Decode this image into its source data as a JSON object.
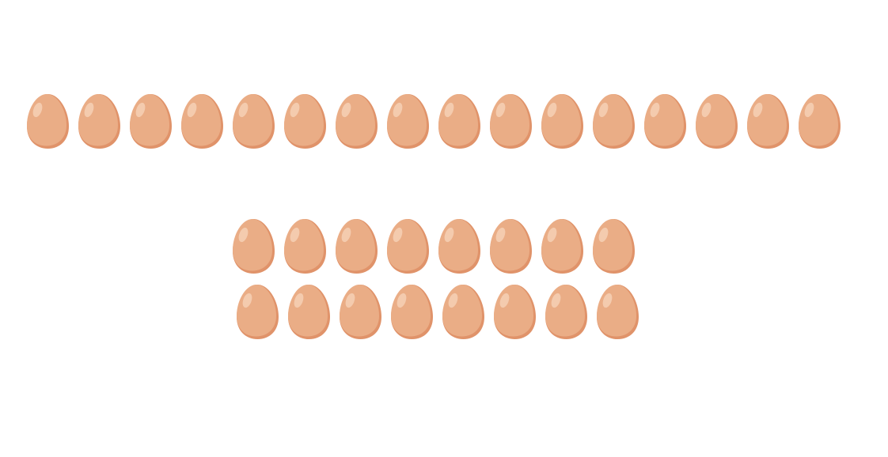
{
  "picture": {
    "icon": "egg-icon",
    "colors": {
      "shadow": "#E0936A",
      "body": "#EAAD86",
      "highlight": "#F4CBAE"
    },
    "rows": [
      {
        "name": "top-row",
        "count": 16
      },
      {
        "name": "middle-row",
        "count": 8
      },
      {
        "name": "bottom-row",
        "count": 8
      }
    ]
  }
}
